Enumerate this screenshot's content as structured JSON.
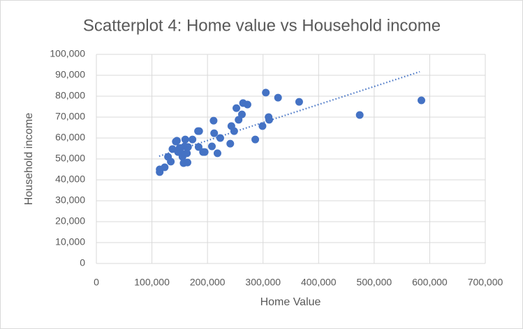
{
  "chart_data": {
    "type": "scatter",
    "title": "Scatterplot 4: Home value vs Household  income",
    "x_label": "Home Value",
    "y_label": "Household income",
    "color": "#4472c4",
    "grid": true,
    "series": [
      {
        "x": [
          114000,
          114000,
          123000,
          129000,
          134000,
          137000,
          143000,
          145000,
          147000,
          150000,
          153000,
          155000,
          157000,
          159000,
          160000,
          163000,
          164000,
          165000,
          173000,
          183000,
          185000,
          184000,
          192000,
          195000,
          208000,
          211000,
          212000,
          218000,
          223000,
          241000,
          243000,
          248000,
          252000,
          256000,
          262000,
          264000,
          272000,
          286000,
          299000,
          305000,
          310000,
          311000,
          327000,
          365000,
          474000,
          585000
        ],
        "values": [
          45000,
          43700,
          46000,
          51000,
          48700,
          54700,
          58300,
          58700,
          53300,
          55300,
          52700,
          51000,
          48000,
          56000,
          59300,
          52700,
          48300,
          55700,
          59300,
          63300,
          63300,
          55700,
          53300,
          53300,
          56000,
          68300,
          62300,
          52700,
          60000,
          57300,
          65700,
          63300,
          74300,
          68700,
          71300,
          76700,
          76000,
          59300,
          65700,
          81700,
          70000,
          68700,
          79300,
          77300,
          71000,
          78000
        ]
      }
    ],
    "trendline": {
      "x": [
        113000,
        582000
      ],
      "values": [
        51300,
        91700
      ]
    },
    "xlim": [
      0,
      700000
    ],
    "ylim": [
      0,
      100000
    ],
    "xticks": [
      0,
      {
        "value": 100000,
        "label": "100,000"
      },
      {
        "value": 200000,
        "label": "200,000"
      },
      {
        "value": 300000,
        "label": "300,000"
      },
      {
        "value": 400000,
        "label": "400,000"
      },
      {
        "value": 500000,
        "label": "500,000"
      },
      {
        "value": 600000,
        "label": "600,000"
      },
      {
        "value": 700000,
        "label": "700,000"
      }
    ],
    "yticks": [
      0,
      {
        "value": 10000,
        "label": "10,000"
      },
      {
        "value": 20000,
        "label": "20,000"
      },
      {
        "value": 30000,
        "label": "30,000"
      },
      {
        "value": 40000,
        "label": "40,000"
      },
      {
        "value": 50000,
        "label": "50,000"
      },
      {
        "value": 60000,
        "label": "60,000"
      },
      {
        "value": 70000,
        "label": "70,000"
      },
      {
        "value": 80000,
        "label": "80,000"
      },
      {
        "value": 90000,
        "label": "90,000"
      },
      {
        "value": 100000,
        "label": "100,000"
      }
    ]
  }
}
